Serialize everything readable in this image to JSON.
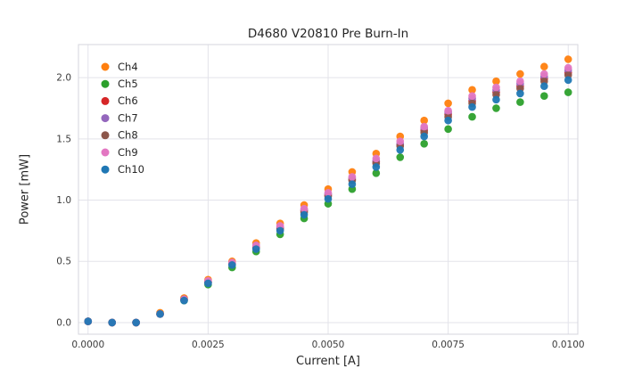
{
  "chart_data": {
    "type": "scatter",
    "title": "D4680 V20810 Pre Burn-In",
    "xlabel": "Current [A]",
    "ylabel": "Power [mW]",
    "xlim": [
      -0.0002,
      0.0102
    ],
    "ylim": [
      -0.095,
      2.27
    ],
    "grid": true,
    "legend_position": "upper left inside",
    "xticks": {
      "values": [
        0.0,
        0.0025,
        0.005,
        0.0075,
        0.01
      ],
      "labels": [
        "0.0000",
        "0.0025",
        "0.0050",
        "0.0075",
        "0.0100"
      ]
    },
    "yticks": {
      "values": [
        0.0,
        0.5,
        1.0,
        1.5,
        2.0
      ],
      "labels": [
        "0.0",
        "0.5",
        "1.0",
        "1.5",
        "2.0"
      ]
    },
    "x": [
      0.0,
      0.0005,
      0.001,
      0.0015,
      0.002,
      0.0025,
      0.003,
      0.0035,
      0.004,
      0.0045,
      0.005,
      0.0055,
      0.006,
      0.0065,
      0.007,
      0.0075,
      0.008,
      0.0085,
      0.009,
      0.0095,
      0.01
    ],
    "series": [
      {
        "name": "Ch4",
        "color": "#ff7f0e",
        "values": [
          0.01,
          0.0,
          0.0,
          0.08,
          0.2,
          0.35,
          0.5,
          0.65,
          0.81,
          0.96,
          1.09,
          1.23,
          1.38,
          1.52,
          1.65,
          1.79,
          1.9,
          1.97,
          2.03,
          2.09,
          2.15
        ]
      },
      {
        "name": "Ch5",
        "color": "#2ca02c",
        "values": [
          0.01,
          0.0,
          0.0,
          0.07,
          0.18,
          0.31,
          0.45,
          0.58,
          0.72,
          0.85,
          0.97,
          1.09,
          1.22,
          1.35,
          1.46,
          1.58,
          1.68,
          1.75,
          1.8,
          1.85,
          1.88
        ]
      },
      {
        "name": "Ch6",
        "color": "#d62728",
        "values": [
          0.01,
          0.0,
          0.0,
          0.07,
          0.19,
          0.33,
          0.48,
          0.62,
          0.77,
          0.91,
          1.04,
          1.17,
          1.31,
          1.45,
          1.57,
          1.7,
          1.81,
          1.88,
          1.93,
          1.99,
          2.04
        ]
      },
      {
        "name": "Ch7",
        "color": "#9467bd",
        "values": [
          0.01,
          0.0,
          0.0,
          0.07,
          0.19,
          0.33,
          0.48,
          0.63,
          0.78,
          0.92,
          1.05,
          1.18,
          1.32,
          1.46,
          1.59,
          1.72,
          1.83,
          1.9,
          1.95,
          2.01,
          2.06
        ]
      },
      {
        "name": "Ch8",
        "color": "#8c564b",
        "values": [
          0.01,
          0.0,
          0.0,
          0.07,
          0.19,
          0.33,
          0.48,
          0.61,
          0.76,
          0.9,
          1.03,
          1.16,
          1.3,
          1.44,
          1.55,
          1.68,
          1.79,
          1.86,
          1.91,
          1.97,
          2.02
        ]
      },
      {
        "name": "Ch9",
        "color": "#e377c2",
        "values": [
          0.01,
          0.0,
          0.0,
          0.07,
          0.19,
          0.34,
          0.49,
          0.63,
          0.79,
          0.93,
          1.06,
          1.19,
          1.34,
          1.48,
          1.6,
          1.73,
          1.85,
          1.92,
          1.97,
          2.03,
          2.08
        ]
      },
      {
        "name": "Ch10",
        "color": "#1f77b4",
        "values": [
          0.01,
          0.0,
          0.0,
          0.07,
          0.18,
          0.32,
          0.47,
          0.6,
          0.75,
          0.88,
          1.01,
          1.13,
          1.27,
          1.41,
          1.52,
          1.65,
          1.76,
          1.82,
          1.87,
          1.93,
          1.98
        ]
      }
    ],
    "style": {
      "grid_color": "#e3e3ea",
      "border_color": "#d5d5dd",
      "tick_label_color": "#3b3b3b",
      "marker_radius": 4.3
    }
  }
}
